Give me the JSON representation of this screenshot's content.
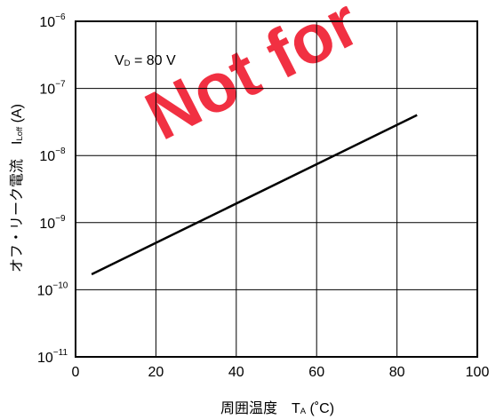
{
  "chart_data": {
    "type": "line",
    "title": "",
    "xlabel": "周囲温度　TA (˚C)",
    "xlabel_parts": {
      "prefix": "周囲温度　T",
      "sub": "A",
      "suffix": " (˚C)"
    },
    "ylabel": "オフ・リーク電流　ILoff (A)",
    "ylabel_parts": {
      "prefix": "オフ・リーク電流　I",
      "sub": "Loff",
      "suffix": " (A)"
    },
    "xlim": [
      0,
      100
    ],
    "ylim": [
      1e-11,
      1e-06
    ],
    "y_scale": "log",
    "grid": true,
    "x_ticks": [
      "0",
      "20",
      "40",
      "60",
      "80",
      "100"
    ],
    "y_ticks": [
      {
        "value": 1e-06,
        "base": "10",
        "exp": "−6"
      },
      {
        "value": 1e-07,
        "base": "10",
        "exp": "−7"
      },
      {
        "value": 1e-08,
        "base": "10",
        "exp": "−8"
      },
      {
        "value": 1e-09,
        "base": "10",
        "exp": "−9"
      },
      {
        "value": 1e-10,
        "base": "10",
        "exp": "−10"
      },
      {
        "value": 1e-11,
        "base": "10",
        "exp": "−11"
      }
    ],
    "annotation": {
      "prefix": "V",
      "sub": "D",
      "suffix": " = 80 V"
    },
    "series": [
      {
        "x": [
          4,
          85
        ],
        "y": [
          1.7e-10,
          4e-08
        ]
      }
    ],
    "line_color": "#000000"
  },
  "watermark": {
    "text": "Not for",
    "color": "#f01e32"
  }
}
